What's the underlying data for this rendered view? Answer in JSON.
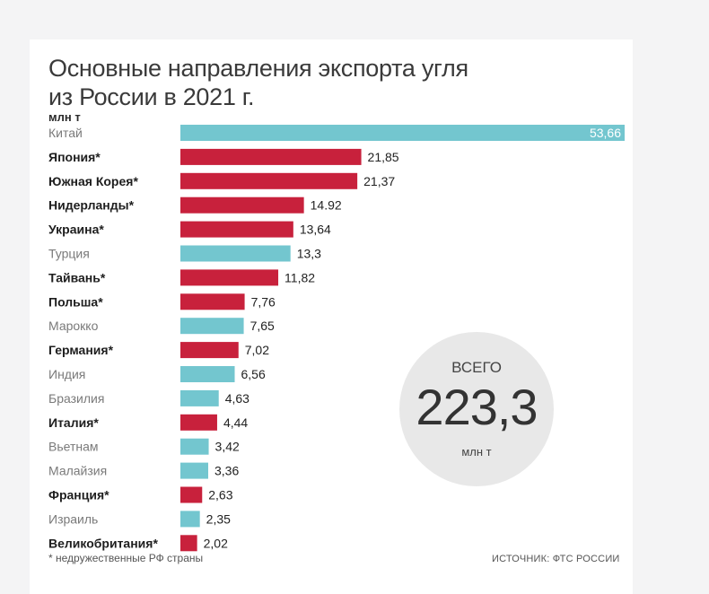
{
  "title": {
    "line1": "Основные направления экспорта угля",
    "line2": "из России в 2021 г."
  },
  "unit_label": "млн т",
  "footnote": "* недружественные РФ страны",
  "source": "ИСТОЧНИК: ФТС РОССИИ",
  "total": {
    "label": "ВСЕГО",
    "value": "223,3",
    "unit": "млн т"
  },
  "colors": {
    "friendly": "#73c6cf",
    "unfriendly": "#c8213c"
  },
  "chart_data": {
    "type": "bar",
    "orientation": "horizontal",
    "title": "Основные направления экспорта угля из России в 2021 г.",
    "xlabel": "",
    "ylabel": "млн т",
    "xlim": [
      0,
      53.66
    ],
    "categories": [
      "Китай",
      "Япония*",
      "Южная Корея*",
      "Нидерланды*",
      "Украина*",
      "Турция",
      "Тайвань*",
      "Польша*",
      "Марокко",
      "Германия*",
      "Индия",
      "Бразилия",
      "Италия*",
      "Вьетнам",
      "Малайзия",
      "Франция*",
      "Израиль",
      "Великобритания*"
    ],
    "values": [
      53.66,
      21.85,
      21.37,
      14.92,
      13.64,
      13.3,
      11.82,
      7.76,
      7.65,
      7.02,
      6.56,
      4.63,
      4.44,
      3.42,
      3.36,
      2.63,
      2.35,
      2.02
    ],
    "value_labels": [
      "53,66",
      "21,85",
      "21,37",
      "14.92",
      "13,64",
      "13,3",
      "11,82",
      "7,76",
      "7,65",
      "7,02",
      "6,56",
      "4,63",
      "4,44",
      "3,42",
      "3,36",
      "2,63",
      "2,35",
      "2,02"
    ],
    "unfriendly": [
      false,
      true,
      true,
      true,
      true,
      false,
      true,
      true,
      false,
      true,
      false,
      false,
      true,
      false,
      false,
      true,
      false,
      true
    ]
  }
}
